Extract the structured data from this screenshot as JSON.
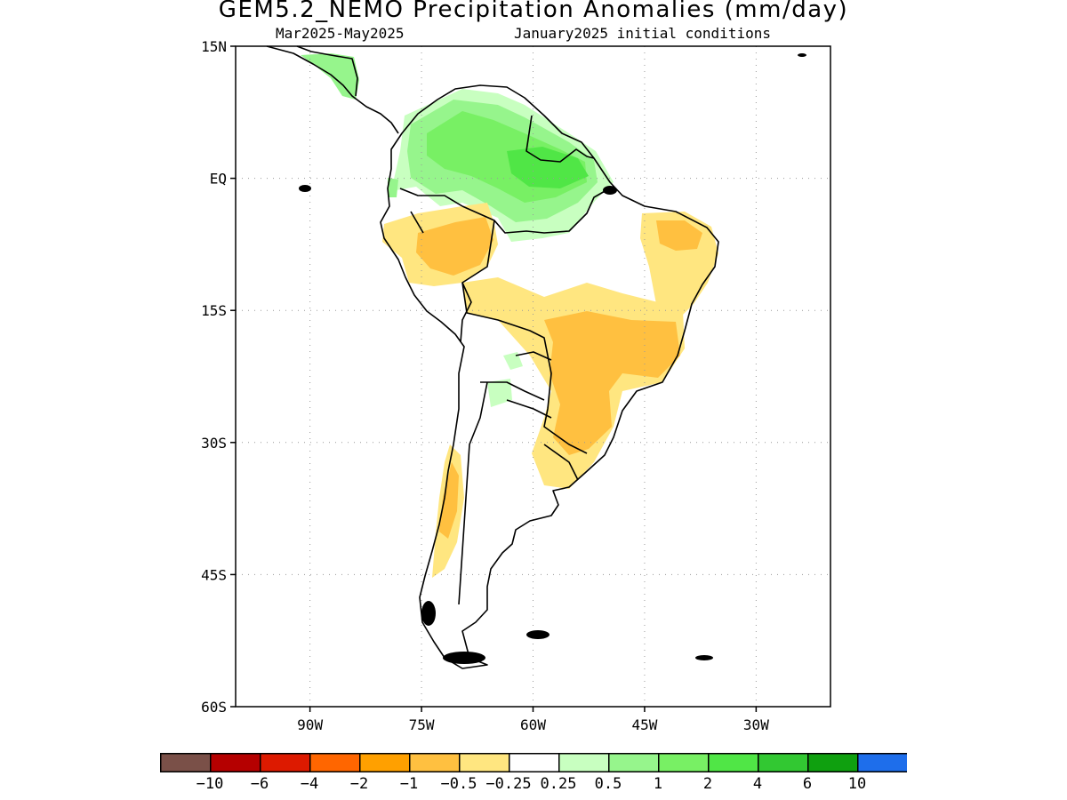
{
  "title": "GEM5.2_NEMO Precipitation Anomalies (mm/day)",
  "subtitle_left": "Mar2025-May2025",
  "subtitle_right": "January2025 initial conditions",
  "map": {
    "lon_range": [
      -100,
      -20
    ],
    "lat_range": [
      -60,
      15
    ],
    "lat_ticks": [
      "15N",
      "EQ",
      "15S",
      "30S",
      "45S",
      "60S"
    ],
    "lon_ticks": [
      "90W",
      "75W",
      "60W",
      "45W",
      "30W"
    ],
    "grid": true
  },
  "colorbar": {
    "colors": [
      "#7a5048",
      "#b50000",
      "#dd1a00",
      "#ff6600",
      "#ffa000",
      "#ffc040",
      "#ffe680",
      "#ffffff",
      "#c8ffc0",
      "#96f58c",
      "#78f064",
      "#50e646",
      "#32c832",
      "#0fa00f",
      "#1e6eeb"
    ],
    "labels": [
      "-10",
      "-6",
      "-4",
      "-2",
      "-1",
      "-0.5",
      "-0.25",
      "0.25",
      "0.5",
      "1",
      "2",
      "4",
      "6",
      "10"
    ]
  }
}
